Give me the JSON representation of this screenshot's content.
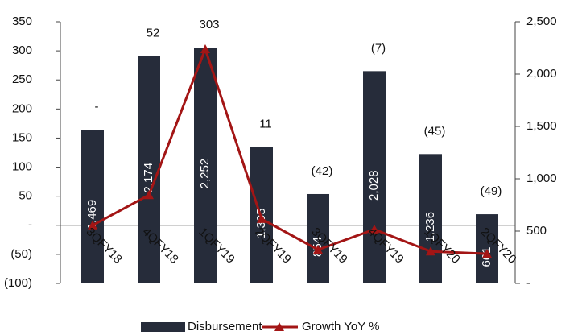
{
  "chart_data": {
    "type": "combo",
    "categories": [
      "3QFY18",
      "4QFY18",
      "1QFY19",
      "2QFY19",
      "3QFY19",
      "4QFY19",
      "1QFY20",
      "2QFY20"
    ],
    "series": [
      {
        "name": "Disbursement",
        "type": "bar",
        "axis": "y2",
        "color": "#262c3a",
        "values": [
          1469,
          2174,
          2252,
          1305,
          854,
          2028,
          1236,
          661
        ],
        "value_labels": [
          "1,469",
          "2,174",
          "2,252",
          "1,305",
          "854",
          "2,028",
          "1,236",
          "661"
        ]
      },
      {
        "name": "Growth YoY %",
        "type": "line",
        "axis": "y",
        "color": "#a31515",
        "values": [
          0,
          52,
          303,
          11,
          -42,
          -7,
          -45,
          -49
        ],
        "value_labels": [
          "-",
          "52",
          "303",
          "11",
          "(42)",
          "(7)",
          "(45)",
          "(49)"
        ]
      }
    ],
    "ylim": [
      -100,
      350
    ],
    "yticks": [
      {
        "value": -100,
        "label": "(100)"
      },
      {
        "value": -50,
        "label": "(50)"
      },
      {
        "value": 0,
        "label": "-"
      },
      50,
      100,
      150,
      200,
      250,
      300,
      350
    ],
    "y2lim": [
      0,
      2500
    ],
    "y2ticks": [
      {
        "value": 0,
        "label": "-"
      },
      500,
      {
        "value": 1000,
        "label": "1,000"
      },
      {
        "value": 1500,
        "label": "1,500"
      },
      {
        "value": 2000,
        "label": "2,000"
      },
      {
        "value": 2500,
        "label": "2,500"
      }
    ],
    "legend": "bottom"
  }
}
